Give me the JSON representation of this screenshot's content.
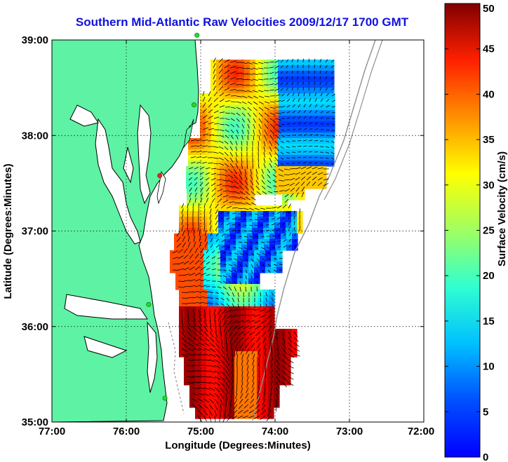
{
  "chart_data": {
    "type": "heatmap",
    "title": "Southern Mid-Atlantic Raw Velocities 2009/12/17 1700 GMT",
    "xlabel": "Longitude (Degrees:Minutes)",
    "ylabel": "Latitude (Degrees:Minutes)",
    "x_ticks": [
      "77:00",
      "76:00",
      "75:00",
      "74:00",
      "73:00",
      "72:00"
    ],
    "y_ticks": [
      "39:00",
      "38:00",
      "37:00",
      "36:00",
      "35:00"
    ],
    "x_values": [
      -77,
      -76,
      -75,
      -74,
      -73,
      -72
    ],
    "y_values": [
      39,
      38,
      37,
      36,
      35
    ],
    "xlim": [
      -77,
      -72
    ],
    "ylim": [
      35,
      39
    ],
    "grid": true,
    "colorbar": {
      "label": "Surface Velocity (cm/s)",
      "range": [
        0,
        50
      ],
      "ticks": [
        "0",
        "5",
        "10",
        "15",
        "20",
        "25",
        "30",
        "35",
        "40",
        "45",
        "50"
      ],
      "colormap": "jet"
    },
    "colors": {
      "land": "#5ef2a4",
      "coastline": "#000000",
      "bathymetry_contour": "#909090",
      "title": "#1010e0",
      "station_green": "#22dd22",
      "station_red": "#ee2222"
    },
    "stations": [
      {
        "lon": -75.05,
        "lat": 39.05,
        "color": "green"
      },
      {
        "lon": -75.09,
        "lat": 38.32,
        "color": "green"
      },
      {
        "lon": -75.55,
        "lat": 37.58,
        "color": "red"
      },
      {
        "lon": -75.7,
        "lat": 36.23,
        "color": "green"
      },
      {
        "lon": -75.48,
        "lat": 35.25,
        "color": "green"
      }
    ]
  }
}
